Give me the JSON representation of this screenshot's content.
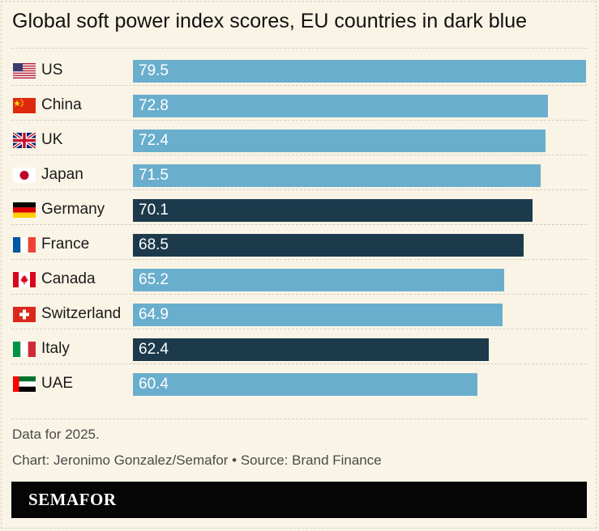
{
  "title": "Global soft power index scores, EU countries in dark blue",
  "colors": {
    "non_eu": "#6aaecd",
    "eu": "#1c3a4c",
    "background": "#f9f4e6"
  },
  "chart_data": {
    "type": "bar",
    "orientation": "horizontal",
    "title": "Global soft power index scores, EU countries in dark blue",
    "categories": [
      "US",
      "China",
      "UK",
      "Japan",
      "Germany",
      "France",
      "Canada",
      "Switzerland",
      "Italy",
      "UAE"
    ],
    "values": [
      79.5,
      72.8,
      72.4,
      71.5,
      70.1,
      68.5,
      65.2,
      64.9,
      62.4,
      60.4
    ],
    "eu": [
      false,
      false,
      false,
      false,
      true,
      true,
      false,
      false,
      true,
      false
    ],
    "flags": [
      "us-flag-icon",
      "china-flag-icon",
      "uk-flag-icon",
      "japan-flag-icon",
      "germany-flag-icon",
      "france-flag-icon",
      "canada-flag-icon",
      "switzerland-flag-icon",
      "italy-flag-icon",
      "uae-flag-icon"
    ],
    "xlim": [
      0,
      79.5
    ],
    "grid": false
  },
  "notes": {
    "data_year": "Data for 2025.",
    "credit": "Chart: Jeronimo Gonzalez/Semafor • Source: Brand Finance"
  },
  "footer": {
    "logo_text": "SEMAFOR"
  }
}
